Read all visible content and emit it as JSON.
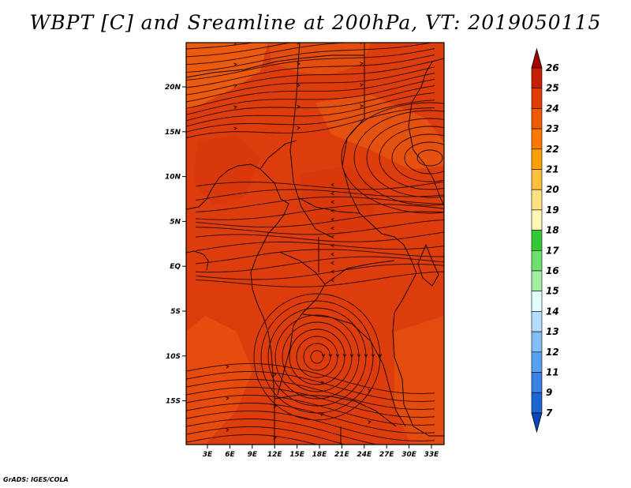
{
  "title": "WBPT [C] and Sreamline at 200hPa, VT: 2019050115",
  "credit": "GrADS: IGES/COLA",
  "map": {
    "lon_labels": [
      "3E",
      "6E",
      "9E",
      "12E",
      "15E",
      "18E",
      "21E",
      "24E",
      "27E",
      "30E",
      "33E"
    ],
    "lat_labels": [
      "20N",
      "15N",
      "10N",
      "5N",
      "EQ",
      "5S",
      "10S",
      "15S"
    ],
    "field_color": "#dd3c0c"
  },
  "colorbar": {
    "labels": [
      "26",
      "25",
      "24",
      "23",
      "22",
      "21",
      "20",
      "19",
      "18",
      "17",
      "16",
      "15",
      "14",
      "13",
      "12",
      "11",
      "9",
      "7"
    ],
    "colors": [
      "#a50000",
      "#c81e00",
      "#e03c00",
      "#f05a00",
      "#ff7800",
      "#ffa000",
      "#ffc03c",
      "#ffe080",
      "#fff8b4",
      "#37c837",
      "#6ee06e",
      "#a0f0a0",
      "#e1ffff",
      "#b4dcff",
      "#82bef5",
      "#5aa0f0",
      "#3c82e6",
      "#1e64d2",
      "#0a46be"
    ]
  }
}
